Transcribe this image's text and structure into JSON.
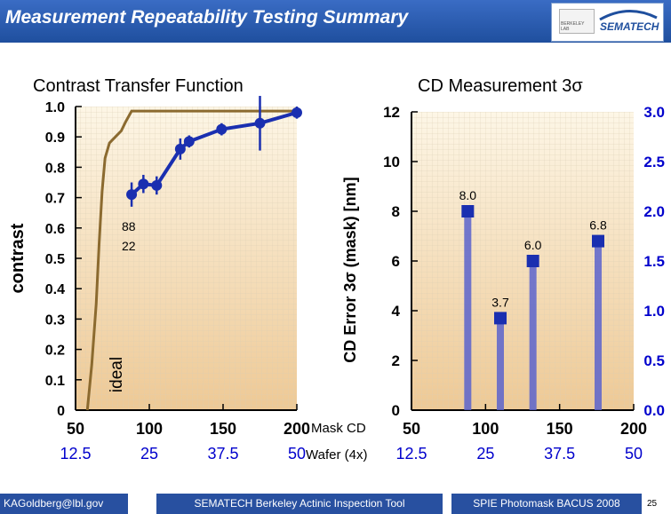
{
  "header": {
    "title": "Measurement Repeatability Testing Summary",
    "logo_text": "SEMATECH",
    "logo_small_text": "BERKELEY LAB"
  },
  "left_title": "Contrast Transfer Function",
  "right_title": "CD Measurement 3",
  "right_title_symbol": "σ",
  "mask_cd_label": "Mask CD",
  "wafer_label": "Wafer (4x)",
  "footer": {
    "left": "KAGoldberg@lbl.gov",
    "center": "SEMATECH Berkeley Actinic Inspection Tool",
    "right": "SPIE Photomask BACUS 2008",
    "page": "25"
  },
  "colors": {
    "series": "#1a2fb0",
    "ideal": "#8b6a2f",
    "bar": "#5b63cc",
    "header": "#1f4f9e"
  },
  "chart_data": [
    {
      "type": "line",
      "title": "Contrast Transfer Function",
      "ylabel": "contrast",
      "xlim": [
        50,
        200
      ],
      "ylim": [
        0,
        1.0
      ],
      "x_ticks": [
        "50",
        "100",
        "150",
        "200"
      ],
      "y_ticks": [
        "0",
        "0.1",
        "0.2",
        "0.3",
        "0.4",
        "0.5",
        "0.6",
        "0.7",
        "0.8",
        "0.9",
        "1.0"
      ],
      "wafer_ticks": [
        "12.5",
        "25",
        "37.5",
        "50"
      ],
      "annotation_top": "88",
      "annotation_bottom": "22",
      "ideal_label": "ideal",
      "ideal_curve": {
        "x": [
          58,
          61,
          64,
          66,
          68,
          70,
          73,
          77,
          81,
          84,
          88,
          200
        ],
        "y": [
          0.0,
          0.15,
          0.35,
          0.55,
          0.72,
          0.83,
          0.88,
          0.9,
          0.92,
          0.95,
          0.985,
          0.985
        ]
      },
      "series": [
        {
          "x": [
            88,
            96,
            105,
            121,
            127,
            149,
            175,
            200
          ],
          "y": [
            0.71,
            0.745,
            0.74,
            0.86,
            0.885,
            0.925,
            0.945,
            0.98
          ],
          "err": [
            0.04,
            0.03,
            0.03,
            0.035,
            0.02,
            0.02,
            0.09,
            0.02
          ]
        }
      ]
    },
    {
      "type": "bar",
      "title": "CD Measurement 3σ",
      "ylabel": "CD Error 3σ (mask) [nm]",
      "xlim": [
        50,
        200
      ],
      "ylim_left": [
        0,
        12
      ],
      "ylim_right": [
        0,
        3.0
      ],
      "x_ticks": [
        "50",
        "100",
        "150",
        "200"
      ],
      "y_ticks_left": [
        "0",
        "2",
        "4",
        "6",
        "8",
        "10",
        "12"
      ],
      "y_ticks_right": [
        "0.0",
        "0.5",
        "1.0",
        "1.5",
        "2.0",
        "2.5",
        "3.0"
      ],
      "wafer_ticks": [
        "12.5",
        "25",
        "37.5",
        "50"
      ],
      "x": [
        88,
        110,
        132,
        176
      ],
      "values": [
        8.0,
        3.7,
        6.0,
        6.8
      ],
      "labels": [
        "8.0",
        "3.7",
        "6.0",
        "6.8"
      ]
    }
  ]
}
